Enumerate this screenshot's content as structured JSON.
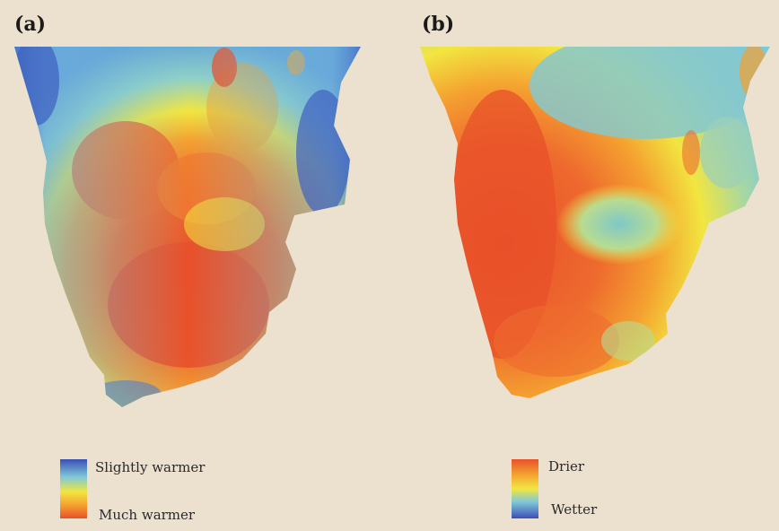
{
  "panels": [
    {
      "id": "a",
      "label": "(a)",
      "legend": {
        "top": "Slightly warmer",
        "bottom": "Much warmer",
        "colors": [
          "#3a4fb5",
          "#7fc8d8",
          "#f2e640",
          "#f4a030",
          "#e8502a"
        ]
      }
    },
    {
      "id": "b",
      "label": "(b)",
      "legend": {
        "top": "Drier",
        "bottom": "Wetter",
        "colors": [
          "#e8502a",
          "#f4a030",
          "#f2e640",
          "#7fc8d8",
          "#3a4fb5"
        ]
      }
    }
  ],
  "colors": {
    "background": "#ece1cf",
    "blue": "#3a4fb5",
    "cyan": "#7fc8d8",
    "yellow": "#f2e640",
    "orange": "#f4a030",
    "red": "#e8502a"
  }
}
